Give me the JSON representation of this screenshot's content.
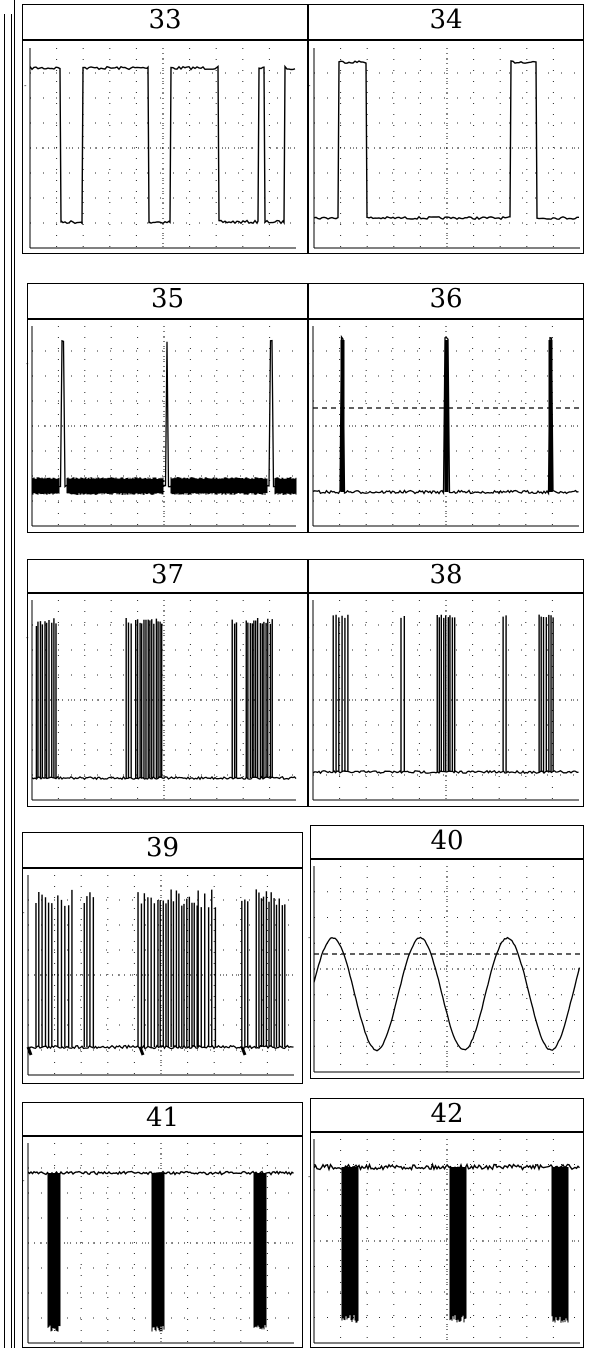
{
  "figures": [
    {
      "label": "33",
      "signal": "square-wave, high level with short low pulses"
    },
    {
      "label": "34",
      "signal": "long low level with brief high pulses"
    },
    {
      "label": "35",
      "signal": "narrow spikes over noisy low band"
    },
    {
      "label": "36",
      "signal": "narrow spikes with dashed threshold"
    },
    {
      "label": "37",
      "signal": "bursts of pulses"
    },
    {
      "label": "38",
      "signal": "bursts of pulses"
    },
    {
      "label": "39",
      "signal": "dense pulse bursts"
    },
    {
      "label": "40",
      "signal": "sine wave with dashed reference"
    },
    {
      "label": "41",
      "signal": "high level with downward noise bursts"
    },
    {
      "label": "42",
      "signal": "high level with downward noise bursts"
    }
  ]
}
